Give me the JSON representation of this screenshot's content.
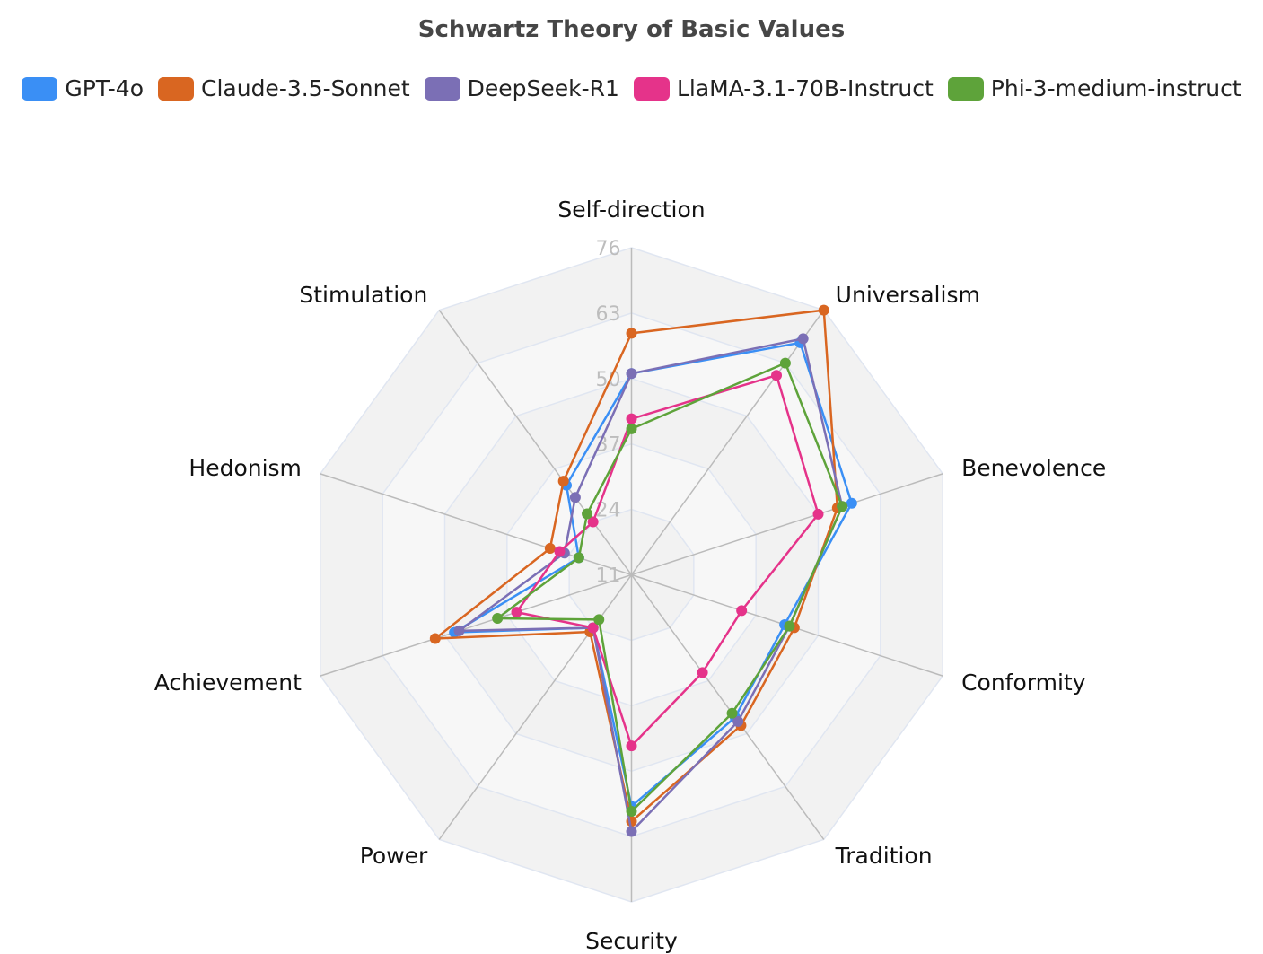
{
  "chart_data": {
    "type": "radar",
    "title": "Schwartz Theory of Basic Values",
    "legend_position": "top",
    "radial_axis": {
      "min": 11,
      "max": 76,
      "ticks": [
        11,
        24,
        37,
        50,
        63,
        76
      ]
    },
    "categories": [
      "Self-direction",
      "Universalism",
      "Benevolence",
      "Conformity",
      "Tradition",
      "Security",
      "Power",
      "Achievement",
      "Hedonism",
      "Stimulation"
    ],
    "series": [
      {
        "name": "GPT-4o",
        "color": "#3a8ff5",
        "values": [
          51,
          68,
          57,
          43,
          46,
          57,
          24,
          48,
          22,
          33
        ]
      },
      {
        "name": "Claude-3.5-Sonnet",
        "color": "#d96621",
        "values": [
          59,
          76,
          54,
          45,
          48,
          60,
          25,
          52,
          28,
          34
        ]
      },
      {
        "name": "DeepSeek-R1",
        "color": "#7b6fb5",
        "values": [
          51,
          69,
          55,
          44,
          47,
          62,
          24,
          47,
          25,
          30
        ]
      },
      {
        "name": "LlaMA-3.1-70B-Instruct",
        "color": "#e5338a",
        "values": [
          42,
          60,
          50,
          34,
          35,
          45,
          24,
          35,
          26,
          24
        ]
      },
      {
        "name": "Phi-3-medium-instruct",
        "color": "#5ea33a",
        "values": [
          40,
          63,
          55,
          44,
          45,
          58,
          22,
          39,
          22,
          26
        ]
      }
    ]
  },
  "title": "Schwartz Theory of Basic Values",
  "legend": [
    {
      "label": "GPT-4o",
      "color": "#3a8ff5"
    },
    {
      "label": "Claude-3.5-Sonnet",
      "color": "#d96621"
    },
    {
      "label": "DeepSeek-R1",
      "color": "#7b6fb5"
    },
    {
      "label": "LlaMA-3.1-70B-Instruct",
      "color": "#e5338a"
    },
    {
      "label": "Phi-3-medium-instruct",
      "color": "#5ea33a"
    }
  ],
  "style": {
    "band_colors": [
      "#f7f7f7",
      "#f2f2f2"
    ],
    "grid_color": "#e0e6f1",
    "axis_line_color": "#bbbbbb"
  }
}
